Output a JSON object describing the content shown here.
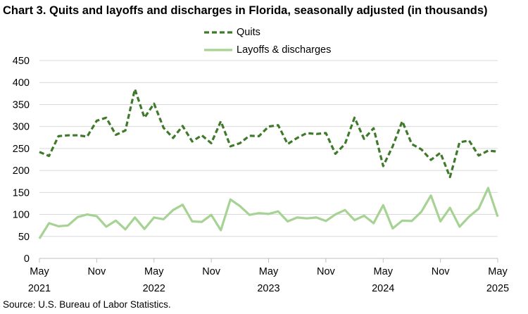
{
  "title": "Chart 3. Quits and layoffs and discharges in Florida, seasonally adjusted (in thousands)",
  "source": "Source: U.S. Bureau of Labor Statistics.",
  "chart_data": {
    "type": "line",
    "title": "Chart 3. Quits and layoffs and discharges in Florida, seasonally adjusted (in thousands)",
    "xlabel": "",
    "ylabel": "",
    "ylim": [
      0,
      450
    ],
    "yticks": [
      "0",
      "50",
      "100",
      "150",
      "200",
      "250",
      "300",
      "350",
      "400",
      "450"
    ],
    "x_tick_labels": [
      {
        "month": "May",
        "year": "2021"
      },
      {
        "month": "Nov",
        "year": ""
      },
      {
        "month": "May",
        "year": "2022"
      },
      {
        "month": "Nov",
        "year": ""
      },
      {
        "month": "May",
        "year": "2023"
      },
      {
        "month": "Nov",
        "year": ""
      },
      {
        "month": "May",
        "year": "2024"
      },
      {
        "month": "Nov",
        "year": ""
      },
      {
        "month": "May",
        "year": "2025"
      }
    ],
    "x_start": "2021-05",
    "x_end": "2025-05",
    "grid": true,
    "legend_position": "top",
    "series": [
      {
        "name": "Quits",
        "color": "#3f7a2b",
        "style": "dashed",
        "values": [
          242,
          233,
          278,
          280,
          280,
          277,
          313,
          320,
          281,
          291,
          385,
          320,
          352,
          297,
          274,
          301,
          266,
          280,
          262,
          312,
          255,
          262,
          279,
          278,
          300,
          303,
          260,
          274,
          285,
          283,
          285,
          238,
          260,
          320,
          272,
          296,
          210,
          255,
          312,
          260,
          248,
          224,
          240,
          185,
          264,
          268,
          234,
          245,
          243
        ]
      },
      {
        "name": "Layoffs & discharges",
        "color": "#a6d393",
        "style": "solid",
        "values": [
          45,
          80,
          73,
          75,
          94,
          100,
          96,
          72,
          86,
          66,
          93,
          67,
          93,
          89,
          110,
          122,
          84,
          83,
          99,
          64,
          134,
          119,
          99,
          103,
          101,
          107,
          84,
          93,
          91,
          93,
          85,
          100,
          110,
          87,
          97,
          80,
          121,
          68,
          86,
          85,
          106,
          143,
          84,
          115,
          72,
          95,
          113,
          160,
          95
        ]
      }
    ]
  }
}
